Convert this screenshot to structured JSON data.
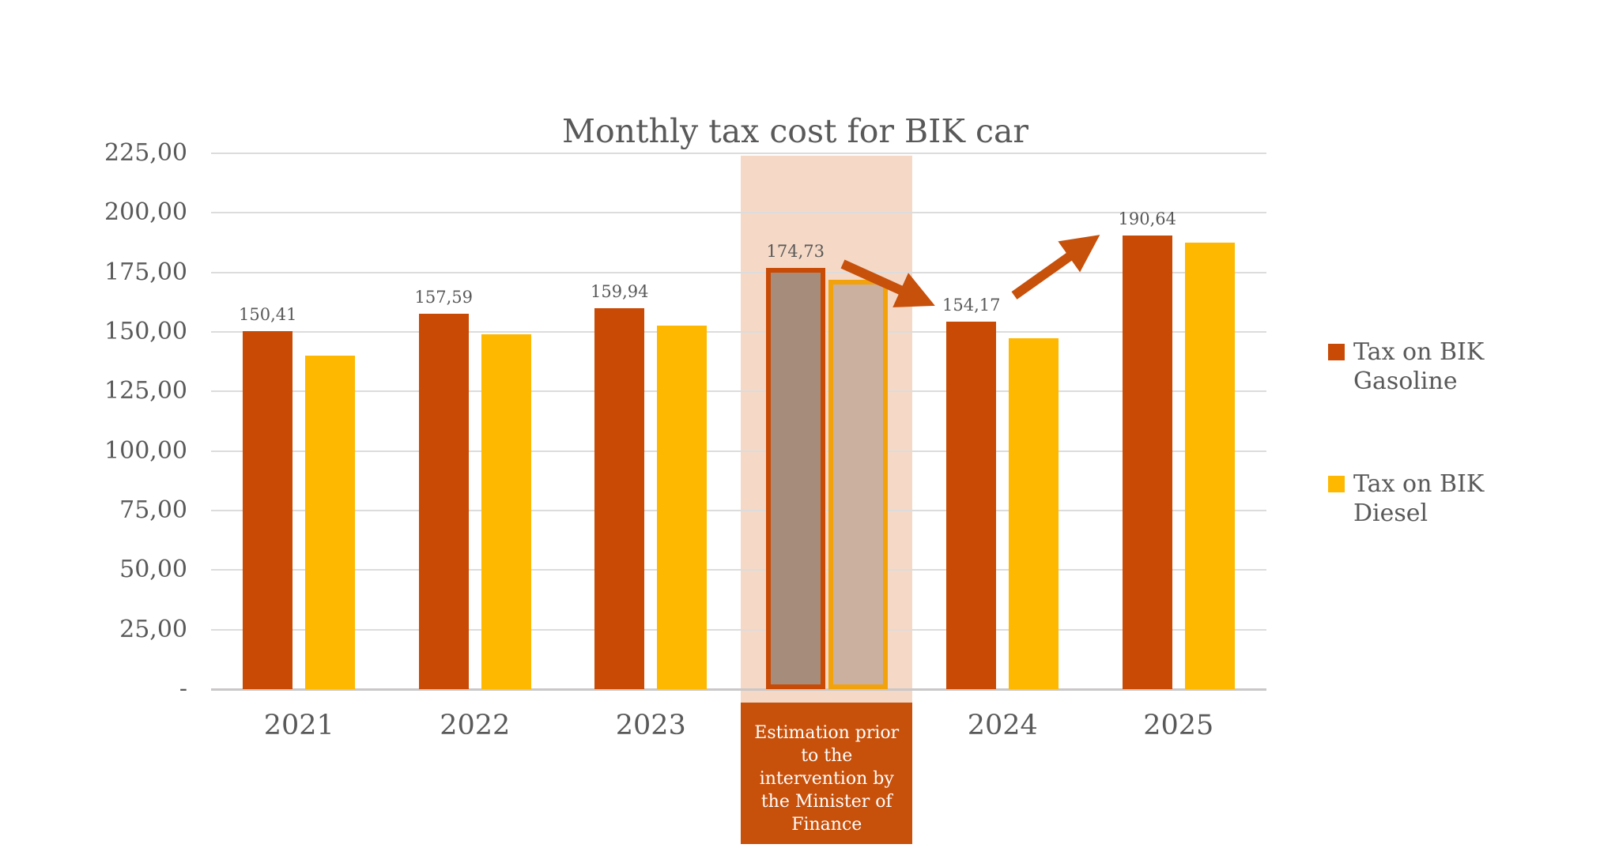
{
  "title": "Monthly tax cost for BIK car",
  "legend": {
    "items": [
      {
        "label": "Tax on BIK Gasoline",
        "color": "#C84A05"
      },
      {
        "label": "Tax on BIK Diesel",
        "color": "#FFB800"
      }
    ]
  },
  "colors": {
    "gasoline": "#C84A05",
    "diesel": "#FFB800",
    "highlight_band": "#F5D9C6",
    "highlight_gasoline_fill": "#A68C7A",
    "highlight_gasoline_border": "#C84A05",
    "highlight_diesel_fill": "#CBB0A0",
    "highlight_diesel_border": "#F2A30B",
    "arrow": "#C7500B",
    "note_box": "#C7500B",
    "note_text": "#FFFFFF",
    "axis_text": "#595959",
    "title_text": "#595959",
    "gridline": "#DCDCDC",
    "baseline": "#C9C7C7"
  },
  "chart_data": {
    "type": "bar",
    "title": "Monthly tax cost for BIK car",
    "categories": [
      "2021",
      "2022",
      "2023",
      "Estimation prior to the intervention by the Minister of Finance",
      "2024",
      "2025"
    ],
    "series": [
      {
        "name": "Tax on BIK Gasoline",
        "color": "#C84A05",
        "values": [
          150.41,
          157.59,
          159.94,
          174.73,
          154.17,
          190.64
        ],
        "data_labels": [
          "150,41",
          "157,59",
          "159,94",
          "174,73",
          "154,17",
          "190,64"
        ]
      },
      {
        "name": "Tax on BIK Diesel",
        "color": "#FFB800",
        "values": [
          140,
          149,
          152.5,
          170,
          147.5,
          187.5
        ],
        "data_labels": []
      }
    ],
    "ylim": [
      0,
      225
    ],
    "ytick_step": 25,
    "ytick_labels_topdown": [
      "225,00",
      "200,00",
      "175,00",
      "150,00",
      "125,00",
      "100,00",
      "75,00",
      "50,00",
      "25,00",
      "-"
    ],
    "grid": true,
    "legend_position": "right",
    "highlight_index": 3,
    "highlight_note_lines": [
      "Estimation prior",
      "to the",
      "intervention by",
      "the Minister of",
      "Finance"
    ],
    "annotations": [
      {
        "type": "arrow",
        "from_category": "Estimation prior to the intervention by the Minister of Finance",
        "to_category": "2024",
        "direction": "down-right"
      },
      {
        "type": "arrow",
        "from_category": "2024",
        "to_category": "2025",
        "direction": "up-right"
      }
    ]
  }
}
